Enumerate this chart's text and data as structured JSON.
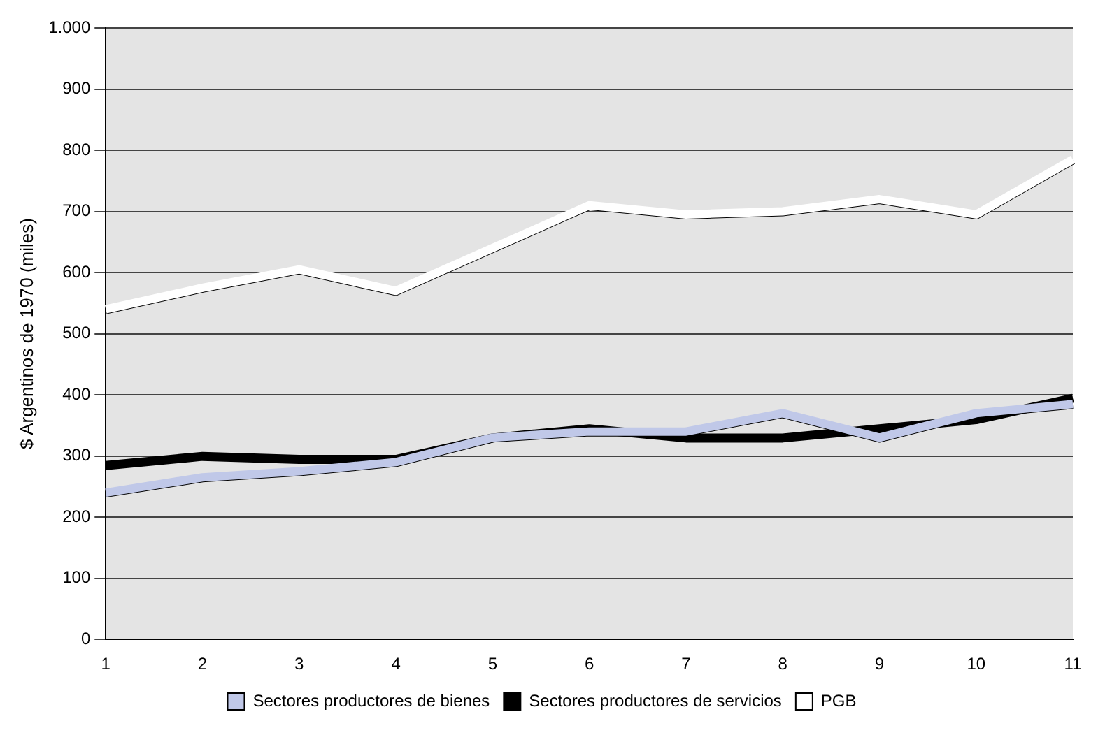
{
  "chart_data": {
    "type": "line",
    "ylabel": "$ Argentinos de 1970 (miles)",
    "categories": [
      "1",
      "2",
      "3",
      "4",
      "5",
      "6",
      "7",
      "8",
      "9",
      "10",
      "11"
    ],
    "series": [
      {
        "name": "Sectores productores de bienes",
        "color": "#c0c8e8",
        "values": [
          240,
          265,
          275,
          290,
          330,
          340,
          340,
          370,
          330,
          370,
          385
        ]
      },
      {
        "name": "Sectores productores de servicios",
        "color": "#000000",
        "values": [
          285,
          300,
          295,
          295,
          330,
          345,
          330,
          330,
          345,
          360,
          395
        ]
      },
      {
        "name": "PGB",
        "color": "#ffffff",
        "values": [
          540,
          575,
          605,
          570,
          640,
          710,
          695,
          700,
          720,
          695,
          785
        ]
      }
    ],
    "ylim": [
      0,
      1000
    ],
    "yticks": [
      0,
      100,
      200,
      300,
      400,
      500,
      600,
      700,
      800,
      900,
      {
        "value": 1000,
        "label": "1.000"
      }
    ],
    "grid": "y",
    "legend": "bottom",
    "marker": "none",
    "line_style": "solid"
  }
}
